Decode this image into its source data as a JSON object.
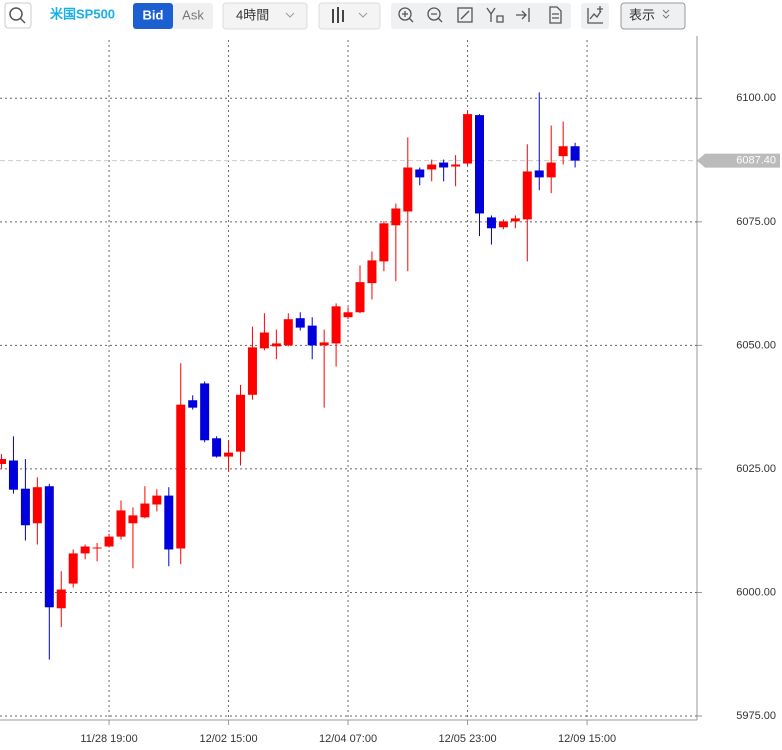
{
  "toolbar": {
    "symbol": "米国SP500",
    "bid": "Bid",
    "ask": "Ask",
    "interval": "4時間",
    "display": "表示"
  },
  "chart_data": {
    "type": "candlestick",
    "up_color": "#ff0000",
    "down_color": "#0000dd",
    "open": [
      6026,
      6026.7,
      6021,
      6014,
      6021.5,
      5996.8,
      6001.8,
      6007.9,
      6008.9,
      6009.3,
      6011.3,
      6014,
      6015.2,
      6017.8,
      6019.6,
      6008.9,
      6038.9,
      6042.3,
      6031.2,
      6027.5,
      6028.5,
      6040,
      6049.4,
      6049.8,
      6050,
      6055.5,
      6054,
      6050,
      6050.4,
      6055.7,
      6056.7,
      6062.6,
      6067,
      6074.3,
      6077.1,
      6085.6,
      6085.6,
      6087,
      6086.2,
      6086.8,
      6096.6,
      6075.9,
      6073.9,
      6075.1,
      6075.5,
      6085.4,
      6084,
      6088.3,
      6090.3
    ],
    "high": [
      6028,
      6031.6,
      6027,
      6023.3,
      6022,
      6004.3,
      6008.7,
      6009.7,
      6010,
      6011.9,
      6018.6,
      6017.2,
      6021.5,
      6020.9,
      6021.3,
      6046.4,
      6039.9,
      6042.7,
      6031.6,
      6030.8,
      6042,
      6053.8,
      6056.5,
      6053.2,
      6056.5,
      6056.7,
      6055.7,
      6053.2,
      6058.5,
      6057.7,
      6066.2,
      6069,
      6075.1,
      6078.7,
      6092.1,
      6086,
      6087.6,
      6087.6,
      6088.5,
      6097.4,
      6096.8,
      6076.3,
      6075.5,
      6076.3,
      6090.7,
      6101.2,
      6094.5,
      6095.3,
      6091
    ],
    "low": [
      6025,
      6020,
      6010.5,
      6009.7,
      5986.4,
      5993,
      6001,
      6006.7,
      6006.3,
      6009.1,
      6010.7,
      6004.9,
      6015,
      6016.4,
      6005.3,
      6005.7,
      6037,
      6030.4,
      6027.3,
      6024.5,
      6025.7,
      6039,
      6049,
      6047.2,
      6049.8,
      6053,
      6047.2,
      6037.4,
      6045.7,
      6055.3,
      6056.5,
      6059.3,
      6065,
      6063,
      6065,
      6082.4,
      6083.2,
      6083.2,
      6082.2,
      6086.4,
      6072.1,
      6070.4,
      6073.5,
      6073.7,
      6067,
      6081.4,
      6080.8,
      6086.6,
      6086
    ],
    "close": [
      6027,
      6020.8,
      6013.6,
      6021.3,
      5997,
      6000.6,
      6007.9,
      6009.3,
      6009.1,
      6011.3,
      6016.6,
      6015.6,
      6018,
      6019.6,
      6008.7,
      6038,
      6037.4,
      6030.8,
      6027.5,
      6028.3,
      6040,
      6049.6,
      6052.6,
      6050.4,
      6055.3,
      6053.6,
      6050,
      6050.6,
      6057.9,
      6056.7,
      6062.8,
      6067.2,
      6074.7,
      6077.7,
      6086,
      6084,
      6086.6,
      6086,
      6086.6,
      6096.8,
      6076.7,
      6073.7,
      6075.1,
      6075.7,
      6085.2,
      6084,
      6087,
      6090.3,
      6087.4
    ],
    "xticks": [
      {
        "value": 9,
        "label": "11/28 19:00"
      },
      {
        "value": 19,
        "label": "12/02 15:00"
      },
      {
        "value": 29,
        "label": "12/04 07:00"
      },
      {
        "value": 39,
        "label": "12/05 23:00"
      },
      {
        "value": 49,
        "label": "12/09 15:00"
      }
    ],
    "ylim": [
      5975,
      6111.8
    ],
    "yticks": [
      {
        "value": 5975,
        "label": "5975.00"
      },
      {
        "value": 6000,
        "label": "6000.00"
      },
      {
        "value": 6025,
        "label": "6025.00"
      },
      {
        "value": 6050,
        "label": "6050.00"
      },
      {
        "value": 6075,
        "label": "6075.00"
      },
      {
        "value": 6100,
        "label": "6100.00"
      }
    ],
    "last_price": {
      "value": 6087.4,
      "label": "6087.40"
    },
    "grid": true
  }
}
